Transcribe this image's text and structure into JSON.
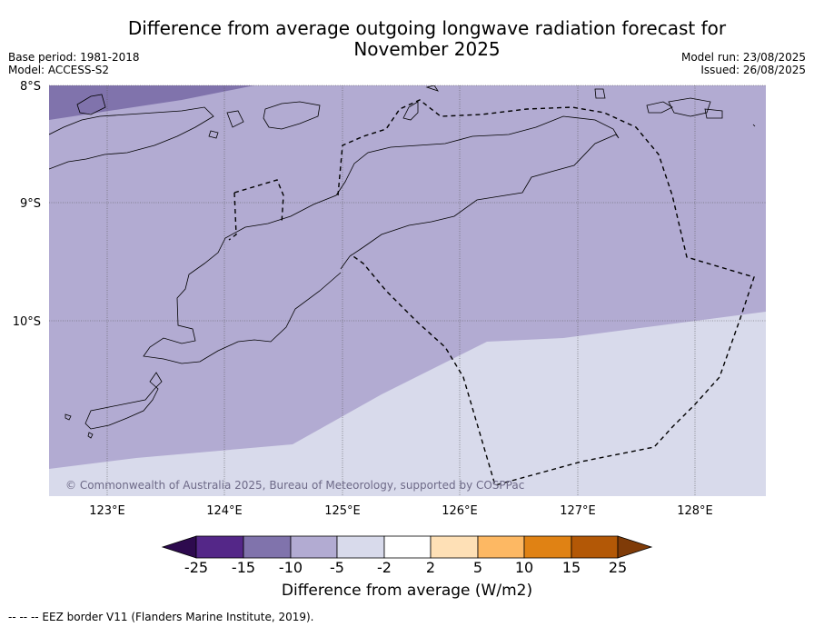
{
  "title": "Difference from average outgoing longwave radiation forecast for November 2025",
  "title_lines": [
    "Difference from average outgoing longwave radiation forecast for",
    "November 2025"
  ],
  "base_period": "Base period: 1981-2018",
  "model": "Model: ACCESS-S2",
  "model_run": "Model run: 23/08/2025",
  "issued": "Issued: 26/08/2025",
  "copyright": "© Commonwealth of Australia 2025, Bureau of Meteorology, supported by COSPPac",
  "lat_labels": [
    "8°S",
    "9°S",
    "10°S"
  ],
  "lon_labels": [
    "123°E",
    "124°E",
    "125°E",
    "126°E",
    "127°E",
    "128°E"
  ],
  "colorbar": {
    "label": "Difference from average (W/m2)",
    "ticks": [
      "-25",
      "-15",
      "-10",
      "-5",
      "-2",
      "2",
      "5",
      "10",
      "15",
      "25"
    ],
    "colors": {
      "below_-25": "#2d0a4e",
      "-25_-15": "#542788",
      "-15_-10": "#8073ac",
      "-10_-5": "#b2abd2",
      "-5_-2": "#d8daeb",
      "-2_2": "#ffffff",
      "2_5": "#fee0b6",
      "5_10": "#fdb863",
      "10_15": "#e08214",
      "15_25": "#b35806",
      "above_25": "#7f3b08"
    }
  },
  "footer": "-- -- -- EEZ border V11 (Flanders Marine Institute, 2019).",
  "map_colors": {
    "band_-15_-10": "#8073ac",
    "band_-10_-5": "#b2abd2",
    "band_-5_-2": "#d8daeb"
  }
}
